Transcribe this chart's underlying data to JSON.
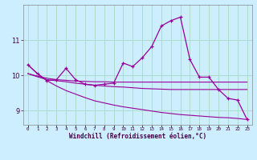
{
  "xlabel": "Windchill (Refroidissement éolien,°C)",
  "background_color": "#cceeff",
  "grid_color": "#aaddcc",
  "line_color": "#990099",
  "x_hours": [
    0,
    1,
    2,
    3,
    4,
    5,
    6,
    7,
    8,
    9,
    10,
    11,
    12,
    13,
    14,
    15,
    16,
    17,
    18,
    19,
    20,
    21,
    22,
    23
  ],
  "y_main": [
    10.3,
    10.05,
    9.85,
    9.88,
    10.2,
    9.88,
    9.75,
    9.72,
    9.75,
    9.78,
    10.35,
    10.25,
    10.5,
    10.82,
    11.4,
    11.55,
    11.65,
    10.45,
    9.95,
    9.95,
    9.6,
    9.35,
    9.3,
    8.75
  ],
  "y_line1": [
    10.05,
    9.98,
    9.92,
    9.88,
    9.86,
    9.84,
    9.83,
    9.82,
    9.82,
    9.81,
    9.81,
    9.81,
    9.81,
    9.81,
    9.81,
    9.81,
    9.81,
    9.81,
    9.81,
    9.81,
    9.81,
    9.81,
    9.81,
    9.81
  ],
  "y_line2": [
    10.05,
    9.96,
    9.88,
    9.85,
    9.82,
    9.78,
    9.75,
    9.72,
    9.7,
    9.68,
    9.67,
    9.65,
    9.63,
    9.62,
    9.61,
    9.6,
    9.6,
    9.6,
    9.6,
    9.6,
    9.6,
    9.6,
    9.6,
    9.6
  ],
  "y_line3": [
    10.3,
    10.05,
    9.85,
    9.7,
    9.57,
    9.47,
    9.37,
    9.28,
    9.22,
    9.16,
    9.11,
    9.07,
    9.03,
    8.99,
    8.95,
    8.92,
    8.89,
    8.87,
    8.85,
    8.83,
    8.81,
    8.8,
    8.78,
    8.75
  ],
  "ylim": [
    8.6,
    12.0
  ],
  "yticks": [
    9,
    10,
    11
  ]
}
